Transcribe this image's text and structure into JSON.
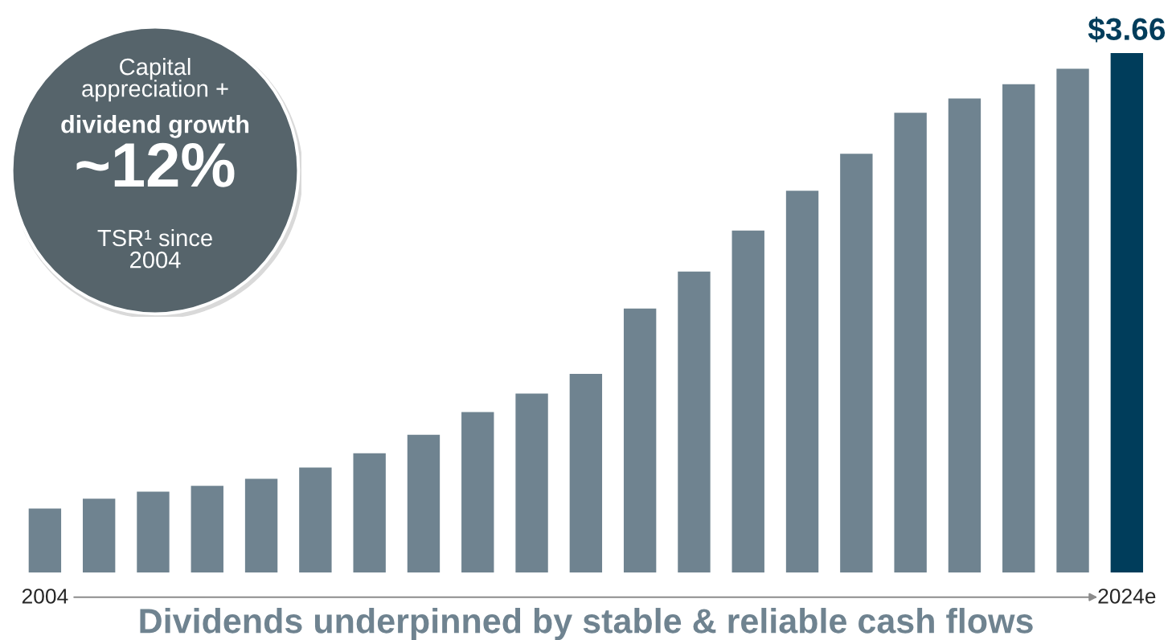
{
  "chart_data": {
    "type": "bar",
    "title": "Dividends underpinned by stable & reliable cash flows",
    "categories": [
      "2004",
      null,
      null,
      null,
      null,
      null,
      null,
      null,
      null,
      null,
      null,
      null,
      null,
      null,
      null,
      null,
      null,
      null,
      null,
      null,
      "2024e"
    ],
    "values": [
      0.45,
      0.52,
      0.57,
      0.61,
      0.66,
      0.74,
      0.84,
      0.97,
      1.13,
      1.26,
      1.4,
      1.86,
      2.12,
      2.41,
      2.69,
      2.95,
      3.24,
      3.34,
      3.44,
      3.55,
      3.66
    ],
    "colors": [
      "#6f8390",
      "#6f8390",
      "#6f8390",
      "#6f8390",
      "#6f8390",
      "#6f8390",
      "#6f8390",
      "#6f8390",
      "#6f8390",
      "#6f8390",
      "#6f8390",
      "#6f8390",
      "#6f8390",
      "#6f8390",
      "#6f8390",
      "#6f8390",
      "#6f8390",
      "#6f8390",
      "#6f8390",
      "#6f8390",
      "#003d5b"
    ],
    "value_labels": [
      null,
      null,
      null,
      null,
      null,
      null,
      null,
      null,
      null,
      null,
      null,
      null,
      null,
      null,
      null,
      null,
      null,
      null,
      null,
      null,
      "$3.66"
    ],
    "annotations": [
      "Capital\nappreciation +",
      "dividend growth",
      "~12%",
      "TSR¹ since\n2004"
    ],
    "grid": false,
    "legend": false
  }
}
